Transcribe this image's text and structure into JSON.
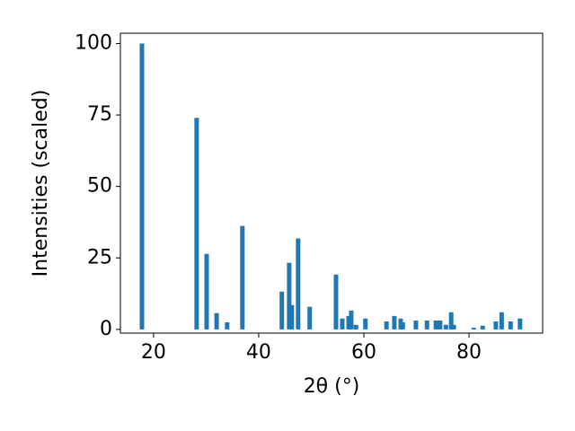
{
  "chart_data": {
    "type": "bar",
    "x_label": "2θ (°)",
    "y_label": "Intensities (scaled)",
    "x": [
      17.8,
      28.2,
      30.1,
      32.0,
      34.0,
      36.9,
      44.4,
      45.8,
      46.3,
      47.5,
      49.7,
      54.7,
      55.9,
      57.1,
      57.6,
      58.5,
      60.3,
      64.3,
      65.8,
      67.0,
      67.4,
      69.9,
      72.0,
      73.7,
      74.5,
      75.6,
      76.6,
      77.1,
      80.9,
      82.6,
      85.1,
      86.2,
      87.9,
      89.7
    ],
    "values": [
      100,
      74,
      26.4,
      5.7,
      2.5,
      36.2,
      13.2,
      23.3,
      8.5,
      31.8,
      7.9,
      19.2,
      3.8,
      4.7,
      6.6,
      1.6,
      3.8,
      2.8,
      4.7,
      3.8,
      2.5,
      3.1,
      3.1,
      3.1,
      3.1,
      1.6,
      6.0,
      1.6,
      0.6,
      1.3,
      2.8,
      6.0,
      2.8,
      3.8
    ],
    "color": "#1f77b4",
    "xlim": [
      13.7,
      94.0
    ],
    "xticks": [
      20,
      40,
      60,
      80
    ],
    "ylim": [
      -1.3,
      103.6
    ],
    "yticks": [
      0,
      25,
      50,
      75,
      100
    ],
    "grid": false
  }
}
